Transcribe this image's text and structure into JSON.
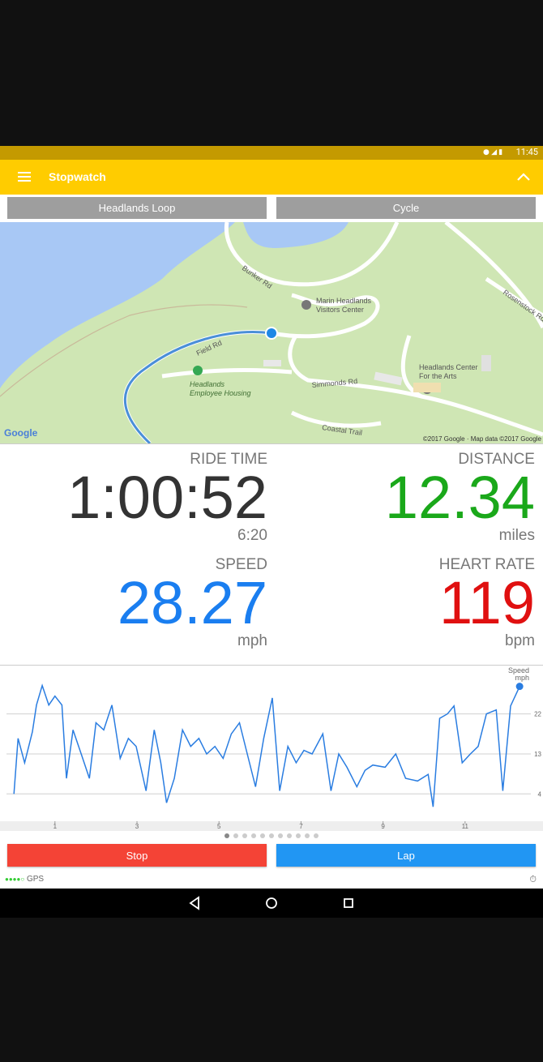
{
  "status_bar": {
    "time": "11:45"
  },
  "app_bar": {
    "title": "Stopwatch"
  },
  "selectors": {
    "route": "Headlands Loop",
    "activity": "Cycle"
  },
  "map": {
    "labels": {
      "bunker_rd": "Bunker Rd",
      "visitors_center": [
        "Marin Headlands",
        "Visitors Center"
      ],
      "field_rd": "Field Rd",
      "housing": [
        "Headlands",
        "Employee Housing"
      ],
      "simmonds_rd": "Simmonds Rd",
      "arts_center": [
        "Headlands Center",
        "For the Arts"
      ],
      "coastal_trail": "Coastal Trail",
      "rosenstock_rd": "Rosenstock Rd"
    },
    "logo": "Google",
    "attribution": "©2017 Google · Map data ©2017 Google"
  },
  "stats": [
    {
      "label": "RIDE TIME",
      "value": "1:00:52",
      "sub": "6:20",
      "color": "#333333"
    },
    {
      "label": "DISTANCE",
      "value": "12.34",
      "sub": "miles",
      "color": "#1aa81a"
    },
    {
      "label": "SPEED",
      "value": "28.27",
      "sub": "mph",
      "color": "#1a7ef0"
    },
    {
      "label": "HEART RATE",
      "value": "119",
      "sub": "bpm",
      "color": "#e01010"
    }
  ],
  "speed_chart": {
    "type": "line",
    "title": "Speed",
    "unit": "mph",
    "color": "#2a7de1",
    "x": [
      0,
      0.1,
      0.26,
      0.45,
      0.55,
      0.69,
      0.85,
      1.0,
      1.17,
      1.28,
      1.44,
      1.64,
      1.84,
      2.0,
      2.19,
      2.39,
      2.59,
      2.79,
      2.98,
      3.22,
      3.42,
      3.58,
      3.72,
      3.91,
      4.11,
      4.31,
      4.51,
      4.7,
      4.9,
      5.1,
      5.3,
      5.5,
      5.69,
      5.89,
      6.09,
      6.3,
      6.48,
      6.68,
      6.88,
      7.07,
      7.27,
      7.53,
      7.73,
      7.92,
      8.12,
      8.36,
      8.56,
      8.75,
      9.05,
      9.31,
      9.55,
      9.84,
      10.1,
      10.22,
      10.38,
      10.57,
      10.73,
      10.93,
      11.13,
      11.32,
      11.52,
      11.76,
      11.92,
      12.11,
      12.33
    ],
    "values": [
      4,
      16.5,
      11,
      18,
      24,
      28.4,
      24,
      26,
      24,
      7.5,
      18.4,
      13,
      7.5,
      20,
      18.4,
      24,
      12,
      16.5,
      14.7,
      4.7,
      18.4,
      11,
      2,
      7.5,
      18.4,
      14.7,
      16.5,
      13,
      14.7,
      12,
      17.5,
      20,
      13,
      5.6,
      16.5,
      25.6,
      4.7,
      14.7,
      11,
      13.8,
      13,
      17.5,
      4.7,
      13,
      10,
      5.6,
      9.3,
      10.5,
      10,
      13,
      7.5,
      6.9,
      8.4,
      1.1,
      21,
      22,
      23.8,
      11,
      13,
      14.7,
      22,
      22.9,
      4.7,
      23.8,
      28.2
    ],
    "xlim": [
      -0.34,
      12.9
    ],
    "ylim": [
      -1.6,
      32.7
    ],
    "xticks": [
      1,
      3,
      5,
      7,
      9,
      11
    ],
    "yticks": [
      4,
      13,
      22
    ],
    "grid": true
  },
  "pager": {
    "count": 11,
    "active": 0
  },
  "buttons": {
    "stop": "Stop",
    "lap": "Lap"
  },
  "footer": {
    "gps": "GPS"
  }
}
